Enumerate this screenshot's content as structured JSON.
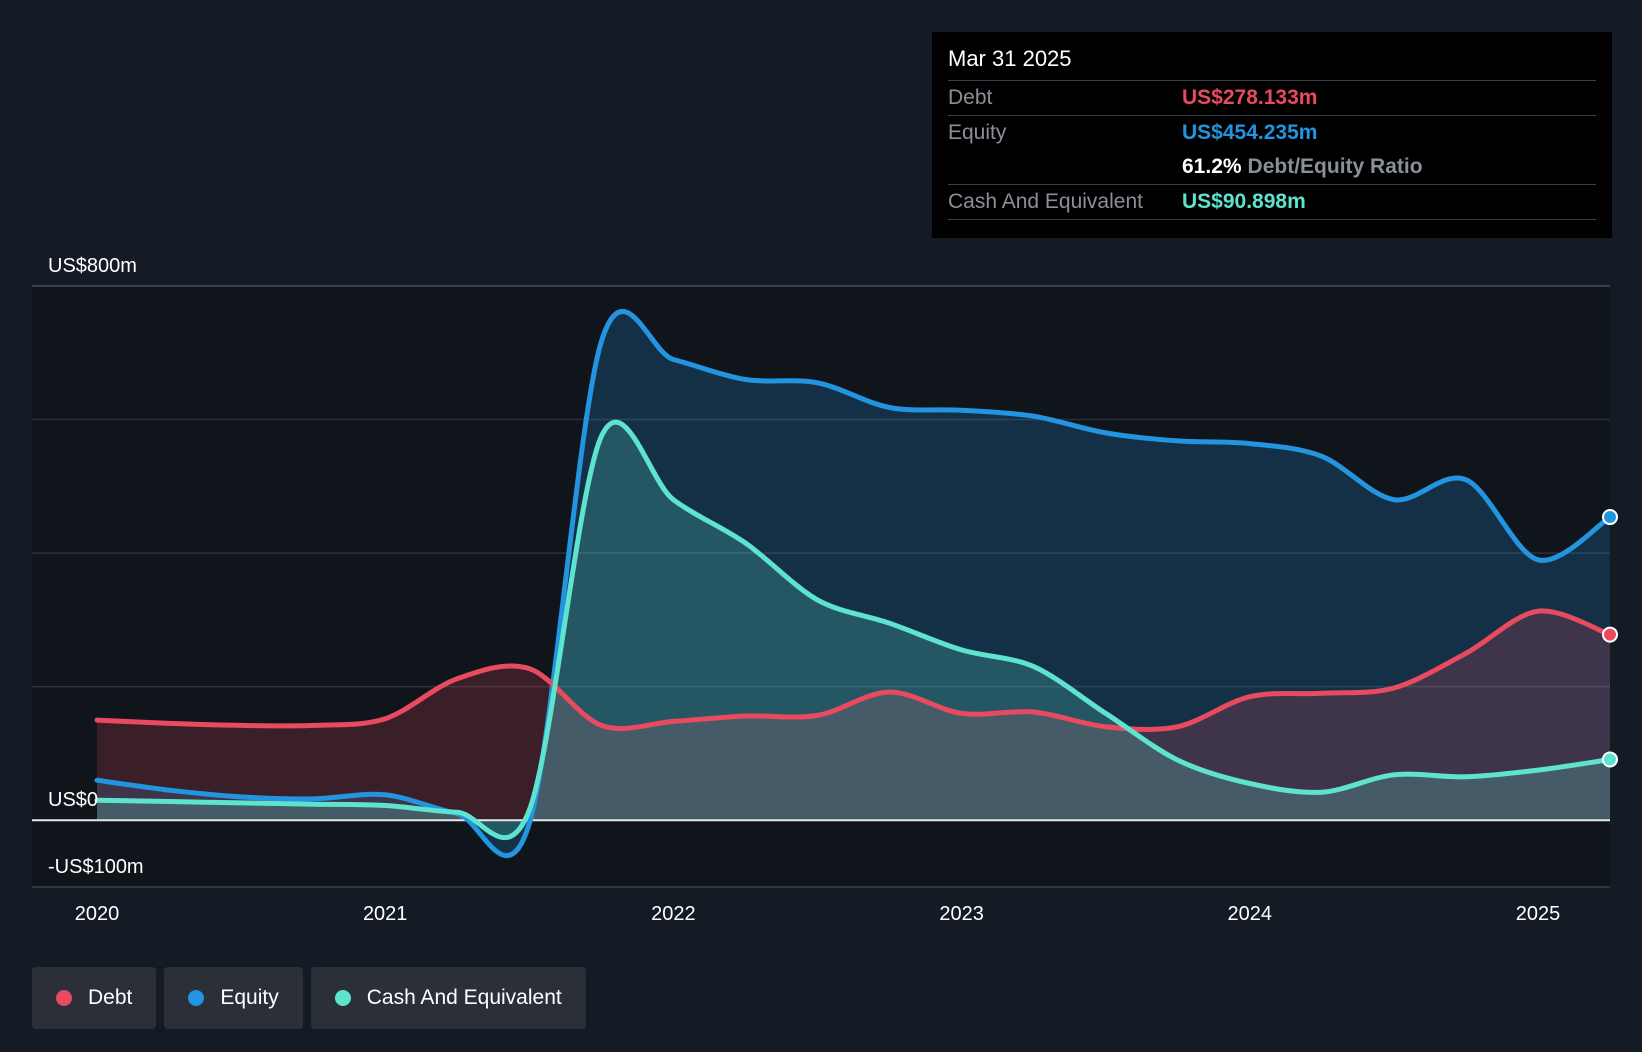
{
  "tooltip": {
    "date": "Mar 31 2025",
    "debt_label": "Debt",
    "debt_value": "US$278.133m",
    "equity_label": "Equity",
    "equity_value": "US$454.235m",
    "ratio_value": "61.2%",
    "ratio_label": "Debt/Equity Ratio",
    "cash_label": "Cash And Equivalent",
    "cash_value": "US$90.898m"
  },
  "legend": [
    {
      "label": "Debt",
      "color": "#e84a5f"
    },
    {
      "label": "Equity",
      "color": "#2394df"
    },
    {
      "label": "Cash And Equivalent",
      "color": "#5ee3cf"
    }
  ],
  "chart_data": {
    "type": "area",
    "title": "",
    "xlabel": "",
    "ylabel": "",
    "ylim": [
      -100,
      800
    ],
    "xlim": [
      2020.0,
      2025.25
    ],
    "y_tick_labels": [
      {
        "value": 800,
        "label": "US$800m"
      },
      {
        "value": 0,
        "label": "US$0"
      },
      {
        "value": -100,
        "label": "-US$100m"
      }
    ],
    "gridlines": [
      800,
      600,
      400,
      200
    ],
    "x_ticks": [
      {
        "value": 2020,
        "label": "2020"
      },
      {
        "value": 2021,
        "label": "2021"
      },
      {
        "value": 2022,
        "label": "2022"
      },
      {
        "value": 2023,
        "label": "2023"
      },
      {
        "value": 2024,
        "label": "2024"
      },
      {
        "value": 2025,
        "label": "2025"
      }
    ],
    "series": [
      {
        "name": "Debt",
        "color": "#e84a5f",
        "x": [
          2020.0,
          2020.25,
          2020.5,
          2020.75,
          2021.0,
          2021.25,
          2021.5,
          2021.75,
          2022.0,
          2022.25,
          2022.5,
          2022.75,
          2023.0,
          2023.25,
          2023.5,
          2023.75,
          2024.0,
          2024.25,
          2024.5,
          2024.75,
          2025.0,
          2025.25
        ],
        "values": [
          150,
          145,
          142,
          142,
          152,
          212,
          227,
          142,
          148,
          156,
          157,
          192,
          160,
          162,
          140,
          140,
          185,
          190,
          198,
          250,
          313,
          278
        ]
      },
      {
        "name": "Equity",
        "color": "#2394df",
        "x": [
          2020.0,
          2020.25,
          2020.5,
          2020.75,
          2021.0,
          2021.25,
          2021.5,
          2021.75,
          2022.0,
          2022.25,
          2022.5,
          2022.75,
          2023.0,
          2023.25,
          2023.5,
          2023.75,
          2024.0,
          2024.25,
          2024.5,
          2024.75,
          2025.0,
          2025.25
        ],
        "values": [
          60,
          45,
          35,
          32,
          38,
          10,
          -5,
          717,
          690,
          660,
          655,
          618,
          614,
          605,
          580,
          568,
          564,
          545,
          480,
          510,
          390,
          454
        ]
      },
      {
        "name": "Cash And Equivalent",
        "color": "#5ee3cf",
        "x": [
          2020.0,
          2020.25,
          2020.5,
          2020.75,
          2021.0,
          2021.25,
          2021.5,
          2021.75,
          2022.0,
          2022.25,
          2022.5,
          2022.75,
          2023.0,
          2023.25,
          2023.5,
          2023.75,
          2024.0,
          2024.25,
          2024.5,
          2024.75,
          2025.0,
          2025.25
        ],
        "values": [
          30,
          28,
          26,
          24,
          22,
          12,
          15,
          575,
          480,
          415,
          330,
          295,
          255,
          230,
          160,
          90,
          55,
          42,
          68,
          65,
          75,
          91
        ]
      }
    ]
  }
}
